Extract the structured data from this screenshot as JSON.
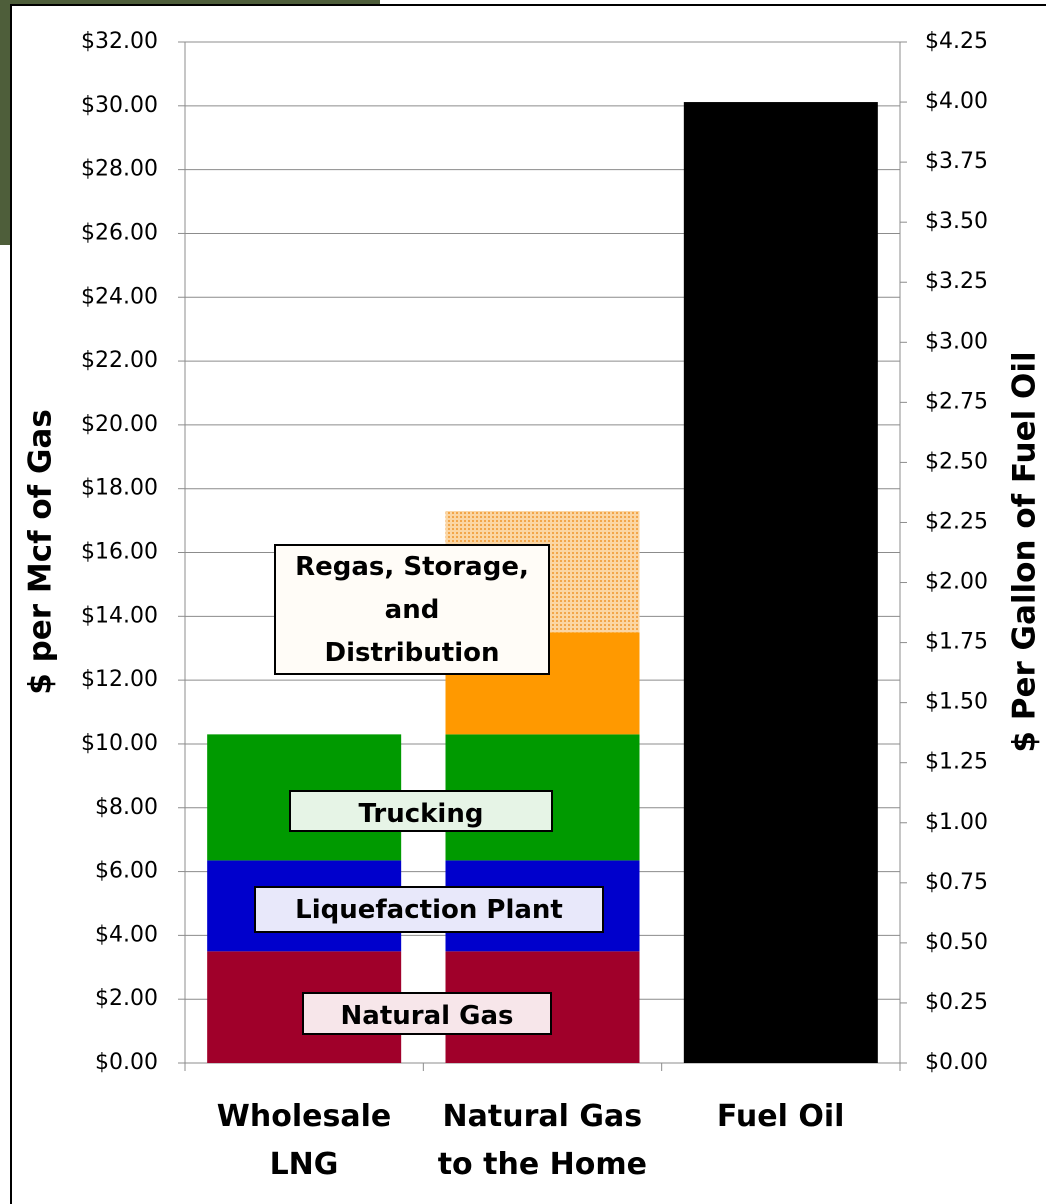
{
  "chart_data": {
    "type": "stacked_bar",
    "categories": [
      "Wholesale\nLNG",
      "Natural Gas\nto the Home",
      "Fuel Oil"
    ],
    "series": [
      {
        "name": "Natural Gas",
        "color": "#a0002a",
        "values": [
          3.5,
          3.5,
          null
        ]
      },
      {
        "name": "Liquefaction Plant",
        "color": "#0000cc",
        "values": [
          2.85,
          2.85,
          null
        ]
      },
      {
        "name": "Trucking",
        "color": "#009a00",
        "values": [
          3.95,
          3.95,
          null
        ]
      },
      {
        "name": "Regas, Storage,\nand\nDistribution",
        "color": "#ff9900",
        "values": [
          null,
          3.2,
          null
        ]
      },
      {
        "color": "#f7c07a",
        "pattern": "dotted",
        "values": [
          null,
          3.8,
          null
        ]
      },
      {
        "color": "#000000",
        "axis": "y2",
        "values": [
          null,
          null,
          4.0
        ]
      }
    ],
    "ylabel": "$ per Mcf of Gas",
    "y2label": "$ Per Gallon of Fuel Oil",
    "ylim": [
      0,
      32
    ],
    "yticks": [
      {
        "value": 0,
        "label": "$0.00"
      },
      {
        "value": 2,
        "label": "$2.00"
      },
      {
        "value": 4,
        "label": "$4.00"
      },
      {
        "value": 6,
        "label": "$6.00"
      },
      {
        "value": 8,
        "label": "$8.00"
      },
      {
        "value": 10,
        "label": "$10.00"
      },
      {
        "value": 12,
        "label": "$12.00"
      },
      {
        "value": 14,
        "label": "$14.00"
      },
      {
        "value": 16,
        "label": "$16.00"
      },
      {
        "value": 18,
        "label": "$18.00"
      },
      {
        "value": 20,
        "label": "$20.00"
      },
      {
        "value": 22,
        "label": "$22.00"
      },
      {
        "value": 24,
        "label": "$24.00"
      },
      {
        "value": 26,
        "label": "$26.00"
      },
      {
        "value": 28,
        "label": "$28.00"
      },
      {
        "value": 30,
        "label": "$30.00"
      },
      {
        "value": 32,
        "label": "$32.00"
      }
    ],
    "y2lim": [
      0,
      4.25
    ],
    "y2ticks": [
      {
        "value": 0,
        "label": "$0.00"
      },
      {
        "value": 0.25,
        "label": "$0.25"
      },
      {
        "value": 0.5,
        "label": "$0.50"
      },
      {
        "value": 0.75,
        "label": "$0.75"
      },
      {
        "value": 1,
        "label": "$1.00"
      },
      {
        "value": 1.25,
        "label": "$1.25"
      },
      {
        "value": 1.5,
        "label": "$1.50"
      },
      {
        "value": 1.75,
        "label": "$1.75"
      },
      {
        "value": 2,
        "label": "$2.00"
      },
      {
        "value": 2.25,
        "label": "$2.25"
      },
      {
        "value": 2.5,
        "label": "$2.50"
      },
      {
        "value": 2.75,
        "label": "$2.75"
      },
      {
        "value": 3,
        "label": "$3.00"
      },
      {
        "value": 3.25,
        "label": "$3.25"
      },
      {
        "value": 3.5,
        "label": "$3.50"
      },
      {
        "value": 3.75,
        "label": "$3.75"
      },
      {
        "value": 4,
        "label": "$4.00"
      },
      {
        "value": 4.25,
        "label": "$4.25"
      }
    ],
    "grid": true
  }
}
